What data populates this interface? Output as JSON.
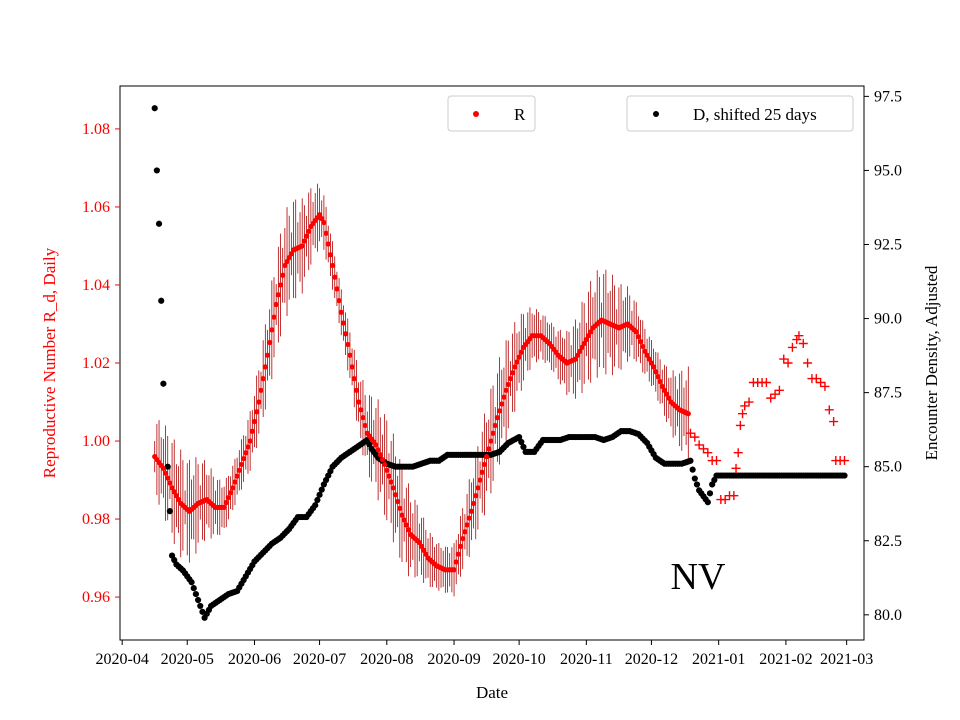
{
  "colors": {
    "r_series": "#ff0000",
    "errorbar": "#b00000",
    "d_series": "#000000",
    "left_axis": "#ff0000",
    "right_axis": "#000000"
  },
  "chart_data": {
    "type": "scatter",
    "title": "",
    "annotation": "NV",
    "xlabel": "Date",
    "ylabel_left": "Reproductive Number R_d, Daily",
    "ylabel_right": "Encounter Density, Adjusted",
    "xlim": [
      "2020-03-31",
      "2021-03-09"
    ],
    "ylim_left": [
      0.949,
      1.091
    ],
    "ylim_right": [
      79.15,
      97.85
    ],
    "x_ticks": [
      "2020-04",
      "2020-05",
      "2020-06",
      "2020-07",
      "2020-08",
      "2020-09",
      "2020-10",
      "2020-11",
      "2020-12",
      "2021-01",
      "2021-02",
      "2021-03"
    ],
    "y_ticks_left": [
      "0.96",
      "0.98",
      "1.00",
      "1.02",
      "1.04",
      "1.06",
      "1.08"
    ],
    "y_ticks_right": [
      "80.0",
      "82.5",
      "85.0",
      "87.5",
      "90.0",
      "92.5",
      "95.0",
      "97.5"
    ],
    "legend": [
      {
        "label": "R",
        "placement": "top-center"
      },
      {
        "label": "D, shifted 25 days",
        "placement": "top-right"
      }
    ],
    "series": [
      {
        "name": "R",
        "axis": "left",
        "marker": "dot",
        "points": [
          [
            "2020-04-16",
            0.996
          ],
          [
            "2020-04-20",
            0.993
          ],
          [
            "2020-04-24",
            0.988
          ],
          [
            "2020-04-28",
            0.984
          ],
          [
            "2020-05-02",
            0.982
          ],
          [
            "2020-05-06",
            0.984
          ],
          [
            "2020-05-10",
            0.985
          ],
          [
            "2020-05-14",
            0.983
          ],
          [
            "2020-05-18",
            0.983
          ],
          [
            "2020-05-22",
            0.988
          ],
          [
            "2020-05-26",
            0.994
          ],
          [
            "2020-05-30",
            1.0
          ],
          [
            "2020-06-03",
            1.01
          ],
          [
            "2020-06-07",
            1.022
          ],
          [
            "2020-06-11",
            1.035
          ],
          [
            "2020-06-15",
            1.045
          ],
          [
            "2020-06-19",
            1.049
          ],
          [
            "2020-06-23",
            1.05
          ],
          [
            "2020-06-27",
            1.055
          ],
          [
            "2020-07-01",
            1.058
          ],
          [
            "2020-07-03",
            1.056
          ],
          [
            "2020-07-07",
            1.045
          ],
          [
            "2020-07-11",
            1.033
          ],
          [
            "2020-07-15",
            1.022
          ],
          [
            "2020-07-19",
            1.01
          ],
          [
            "2020-07-23",
            1.002
          ],
          [
            "2020-07-27",
            0.999
          ],
          [
            "2020-07-31",
            0.994
          ],
          [
            "2020-08-04",
            0.988
          ],
          [
            "2020-08-08",
            0.981
          ],
          [
            "2020-08-12",
            0.976
          ],
          [
            "2020-08-16",
            0.974
          ],
          [
            "2020-08-20",
            0.97
          ],
          [
            "2020-08-24",
            0.968
          ],
          [
            "2020-08-28",
            0.967
          ],
          [
            "2020-09-01",
            0.967
          ],
          [
            "2020-09-05",
            0.975
          ],
          [
            "2020-09-09",
            0.982
          ],
          [
            "2020-09-13",
            0.99
          ],
          [
            "2020-09-17",
            0.998
          ],
          [
            "2020-09-21",
            1.006
          ],
          [
            "2020-09-25",
            1.013
          ],
          [
            "2020-09-29",
            1.019
          ],
          [
            "2020-10-03",
            1.024
          ],
          [
            "2020-10-07",
            1.027
          ],
          [
            "2020-10-11",
            1.027
          ],
          [
            "2020-10-15",
            1.025
          ],
          [
            "2020-10-19",
            1.022
          ],
          [
            "2020-10-23",
            1.02
          ],
          [
            "2020-10-27",
            1.021
          ],
          [
            "2020-10-31",
            1.025
          ],
          [
            "2020-11-04",
            1.029
          ],
          [
            "2020-11-08",
            1.031
          ],
          [
            "2020-11-12",
            1.03
          ],
          [
            "2020-11-16",
            1.029
          ],
          [
            "2020-11-20",
            1.03
          ],
          [
            "2020-11-24",
            1.028
          ],
          [
            "2020-11-28",
            1.023
          ],
          [
            "2020-12-02",
            1.019
          ],
          [
            "2020-12-06",
            1.014
          ],
          [
            "2020-12-10",
            1.01
          ],
          [
            "2020-12-14",
            1.008
          ],
          [
            "2020-12-18",
            1.007
          ]
        ]
      },
      {
        "name": "R projected",
        "axis": "left",
        "marker": "plus",
        "points": [
          [
            "2020-12-19",
            1.002
          ],
          [
            "2020-12-21",
            1.001
          ],
          [
            "2020-12-23",
            0.999
          ],
          [
            "2020-12-25",
            0.998
          ],
          [
            "2020-12-27",
            0.997
          ],
          [
            "2020-12-29",
            0.995
          ],
          [
            "2020-12-31",
            0.995
          ],
          [
            "2021-01-02",
            0.985
          ],
          [
            "2021-01-04",
            0.985
          ],
          [
            "2021-01-06",
            0.986
          ],
          [
            "2021-01-08",
            0.986
          ],
          [
            "2021-01-09",
            0.993
          ],
          [
            "2021-01-10",
            0.997
          ],
          [
            "2021-01-11",
            1.004
          ],
          [
            "2021-01-12",
            1.007
          ],
          [
            "2021-01-13",
            1.009
          ],
          [
            "2021-01-15",
            1.01
          ],
          [
            "2021-01-17",
            1.015
          ],
          [
            "2021-01-19",
            1.015
          ],
          [
            "2021-01-21",
            1.015
          ],
          [
            "2021-01-23",
            1.015
          ],
          [
            "2021-01-25",
            1.011
          ],
          [
            "2021-01-27",
            1.012
          ],
          [
            "2021-01-29",
            1.013
          ],
          [
            "2021-01-31",
            1.021
          ],
          [
            "2021-02-02",
            1.02
          ],
          [
            "2021-02-04",
            1.024
          ],
          [
            "2021-02-06",
            1.026
          ],
          [
            "2021-02-07",
            1.027
          ],
          [
            "2021-02-09",
            1.025
          ],
          [
            "2021-02-11",
            1.02
          ],
          [
            "2021-02-13",
            1.016
          ],
          [
            "2021-02-15",
            1.016
          ],
          [
            "2021-02-17",
            1.015
          ],
          [
            "2021-02-19",
            1.014
          ],
          [
            "2021-02-21",
            1.008
          ],
          [
            "2021-02-23",
            1.005
          ],
          [
            "2021-02-24",
            0.995
          ],
          [
            "2021-02-26",
            0.995
          ],
          [
            "2021-02-28",
            0.995
          ]
        ]
      },
      {
        "name": "D, shifted 25 days",
        "axis": "right",
        "marker": "dot",
        "points": [
          [
            "2020-04-16",
            97.1
          ],
          [
            "2020-04-17",
            95.0
          ],
          [
            "2020-04-18",
            93.2
          ],
          [
            "2020-04-19",
            90.6
          ],
          [
            "2020-04-20",
            87.8
          ],
          [
            "2020-04-22",
            85.0
          ],
          [
            "2020-04-24",
            82.0
          ],
          [
            "2020-04-26",
            81.7
          ],
          [
            "2020-04-29",
            81.5
          ],
          [
            "2020-05-03",
            81.1
          ],
          [
            "2020-05-06",
            80.5
          ],
          [
            "2020-05-09",
            79.9
          ],
          [
            "2020-05-12",
            80.3
          ],
          [
            "2020-05-16",
            80.5
          ],
          [
            "2020-05-20",
            80.7
          ],
          [
            "2020-05-24",
            80.8
          ],
          [
            "2020-05-28",
            81.3
          ],
          [
            "2020-06-01",
            81.8
          ],
          [
            "2020-06-05",
            82.1
          ],
          [
            "2020-06-09",
            82.4
          ],
          [
            "2020-06-13",
            82.6
          ],
          [
            "2020-06-17",
            82.9
          ],
          [
            "2020-06-21",
            83.3
          ],
          [
            "2020-06-25",
            83.3
          ],
          [
            "2020-06-29",
            83.7
          ],
          [
            "2020-07-03",
            84.4
          ],
          [
            "2020-07-07",
            85.0
          ],
          [
            "2020-07-11",
            85.3
          ],
          [
            "2020-07-15",
            85.5
          ],
          [
            "2020-07-19",
            85.7
          ],
          [
            "2020-07-23",
            85.9
          ],
          [
            "2020-07-25",
            85.6
          ],
          [
            "2020-07-28",
            85.3
          ],
          [
            "2020-08-01",
            85.1
          ],
          [
            "2020-08-05",
            85.0
          ],
          [
            "2020-08-09",
            85.0
          ],
          [
            "2020-08-13",
            85.0
          ],
          [
            "2020-08-17",
            85.1
          ],
          [
            "2020-08-21",
            85.2
          ],
          [
            "2020-08-25",
            85.2
          ],
          [
            "2020-08-29",
            85.4
          ],
          [
            "2020-09-02",
            85.4
          ],
          [
            "2020-09-06",
            85.4
          ],
          [
            "2020-09-10",
            85.4
          ],
          [
            "2020-09-14",
            85.4
          ],
          [
            "2020-09-18",
            85.4
          ],
          [
            "2020-09-22",
            85.5
          ],
          [
            "2020-09-26",
            85.8
          ],
          [
            "2020-10-01",
            86.0
          ],
          [
            "2020-10-04",
            85.5
          ],
          [
            "2020-10-08",
            85.5
          ],
          [
            "2020-10-12",
            85.9
          ],
          [
            "2020-10-16",
            85.9
          ],
          [
            "2020-10-20",
            85.9
          ],
          [
            "2020-10-24",
            86.0
          ],
          [
            "2020-10-28",
            86.0
          ],
          [
            "2020-11-01",
            86.0
          ],
          [
            "2020-11-05",
            86.0
          ],
          [
            "2020-11-09",
            85.9
          ],
          [
            "2020-11-13",
            86.0
          ],
          [
            "2020-11-17",
            86.2
          ],
          [
            "2020-11-21",
            86.2
          ],
          [
            "2020-11-25",
            86.1
          ],
          [
            "2020-11-29",
            85.8
          ],
          [
            "2020-12-03",
            85.3
          ],
          [
            "2020-12-07",
            85.1
          ],
          [
            "2020-12-11",
            85.1
          ],
          [
            "2020-12-15",
            85.1
          ],
          [
            "2020-12-19",
            85.2
          ],
          [
            "2020-12-21",
            84.6
          ],
          [
            "2020-12-23",
            84.2
          ],
          [
            "2020-12-25",
            84.0
          ],
          [
            "2020-12-27",
            83.8
          ],
          [
            "2020-12-29",
            84.4
          ],
          [
            "2020-12-31",
            84.7
          ],
          [
            "2021-01-05",
            84.7
          ],
          [
            "2021-01-15",
            84.7
          ],
          [
            "2021-01-25",
            84.7
          ],
          [
            "2021-02-05",
            84.7
          ],
          [
            "2021-02-15",
            84.7
          ],
          [
            "2021-02-28",
            84.7
          ]
        ]
      }
    ]
  }
}
